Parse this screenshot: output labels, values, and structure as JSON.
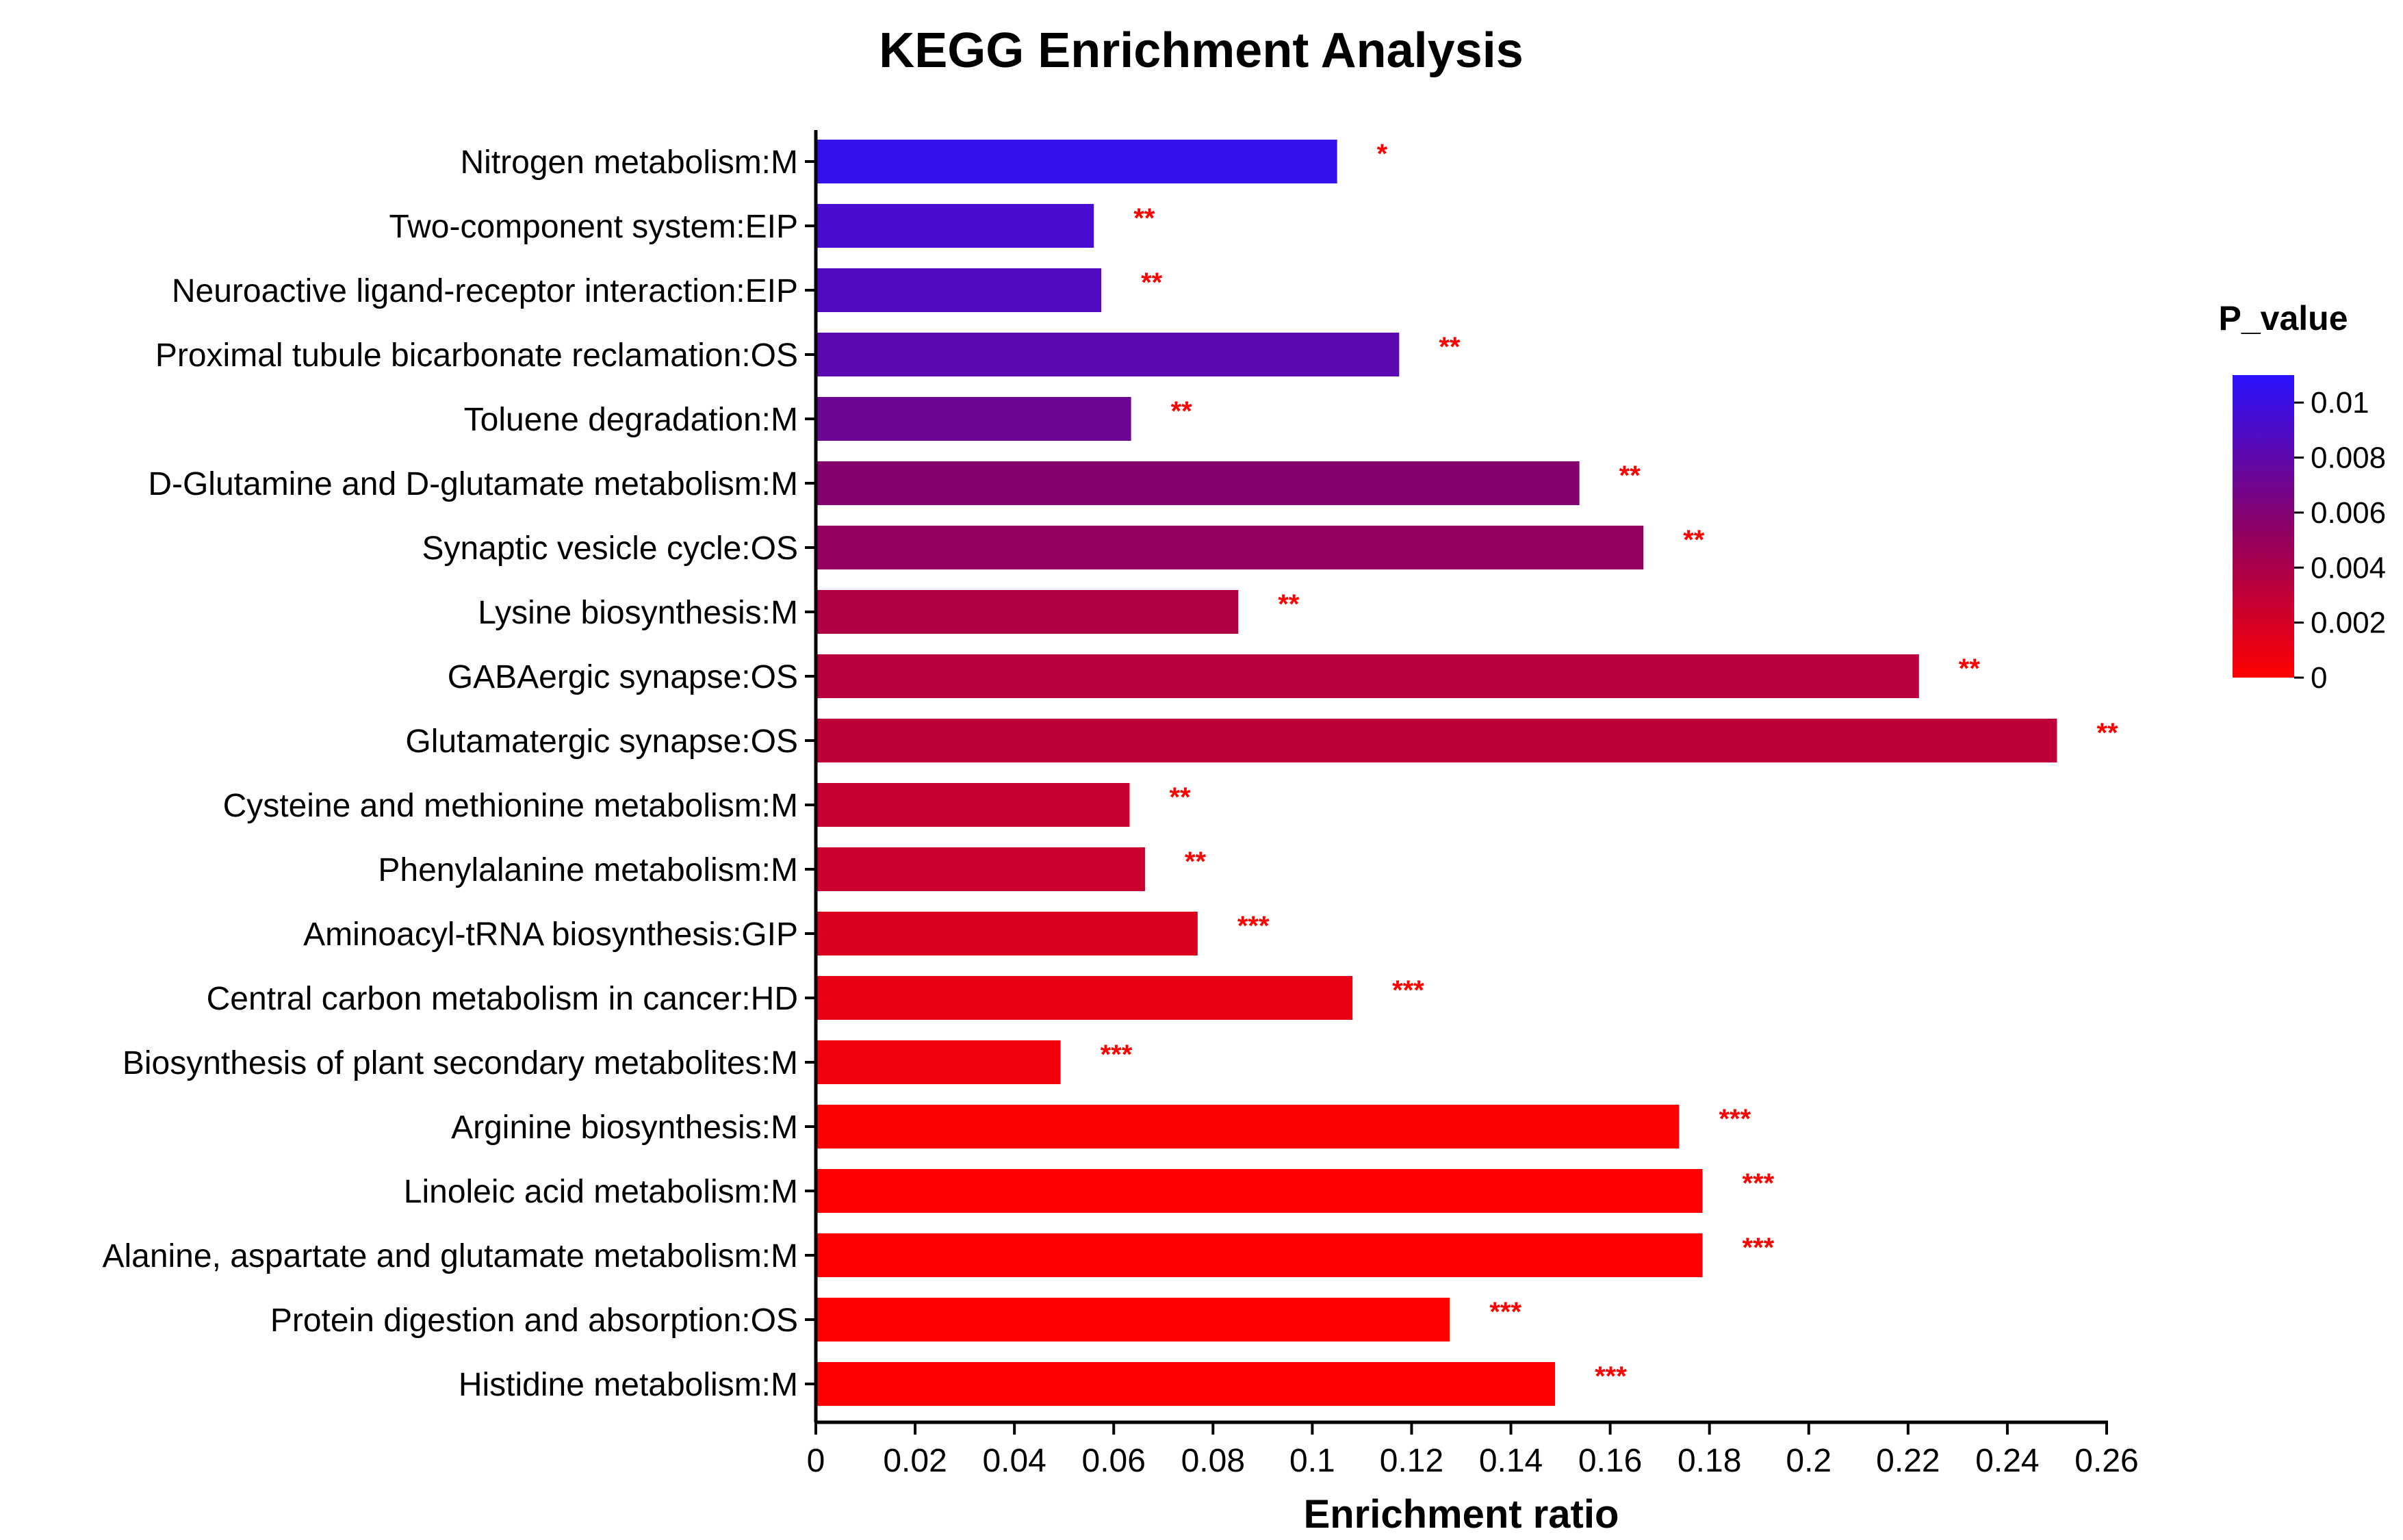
{
  "chart_data": {
    "type": "bar",
    "orientation": "horizontal",
    "title": "KEGG Enrichment Analysis",
    "xlabel": "Enrichment ratio",
    "xlim": [
      0,
      0.26
    ],
    "xticks": [
      "0",
      "0.02",
      "0.04",
      "0.06",
      "0.08",
      "0.1",
      "0.12",
      "0.14",
      "0.16",
      "0.18",
      "0.2",
      "0.22",
      "0.24",
      "0.26"
    ],
    "categories": [
      "Nitrogen metabolism:M",
      "Two-component system:EIP",
      "Neuroactive ligand-receptor interaction:EIP",
      "Proximal tubule bicarbonate reclamation:OS",
      "Toluene degradation:M",
      "D-Glutamine and D-glutamate metabolism:M",
      "Synaptic vesicle cycle:OS",
      "Lysine biosynthesis:M",
      "GABAergic synapse:OS",
      "Glutamatergic synapse:OS",
      "Cysteine and methionine metabolism:M",
      "Phenylalanine metabolism:M",
      "Aminoacyl-tRNA biosynthesis:GIP",
      "Central carbon metabolism in cancer:HD",
      "Biosynthesis of plant secondary metabolites:M",
      "Arginine biosynthesis:M",
      "Linoleic acid metabolism:M",
      "Alanine, aspartate and glutamate metabolism:M",
      "Protein digestion and absorption:OS",
      "Histidine metabolism:M"
    ],
    "values": [
      0.105,
      0.056,
      0.0575,
      0.1175,
      0.0635,
      0.1538,
      0.1667,
      0.0851,
      0.2222,
      0.25,
      0.0632,
      0.0663,
      0.0769,
      0.1081,
      0.0493,
      0.1739,
      0.1786,
      0.1786,
      0.1277,
      0.1489
    ],
    "p_values": [
      0.0104,
      0.0093,
      0.0087,
      0.0082,
      0.0072,
      0.0058,
      0.0052,
      0.0038,
      0.0033,
      0.0031,
      0.0027,
      0.0025,
      0.0017,
      0.0011,
      0.0006,
      0.0001,
      5e-05,
      4e-05,
      2e-05,
      1e-05
    ],
    "significance": [
      "*",
      "**",
      "**",
      "**",
      "**",
      "**",
      "**",
      "**",
      "**",
      "**",
      "**",
      "**",
      "***",
      "***",
      "***",
      "***",
      "***",
      "***",
      "***",
      "***"
    ],
    "legend": {
      "title": "P_value",
      "position": "right",
      "range": [
        0,
        0.011
      ],
      "ticks": [
        "0.01",
        "0.008",
        "0.006",
        "0.004",
        "0.002",
        "0"
      ],
      "tick_values": [
        0.01,
        0.008,
        0.006,
        0.004,
        0.002,
        0
      ],
      "colors": {
        "low": "#ff0000",
        "mid": "#8b0066",
        "high": "#2a13ff"
      }
    }
  }
}
